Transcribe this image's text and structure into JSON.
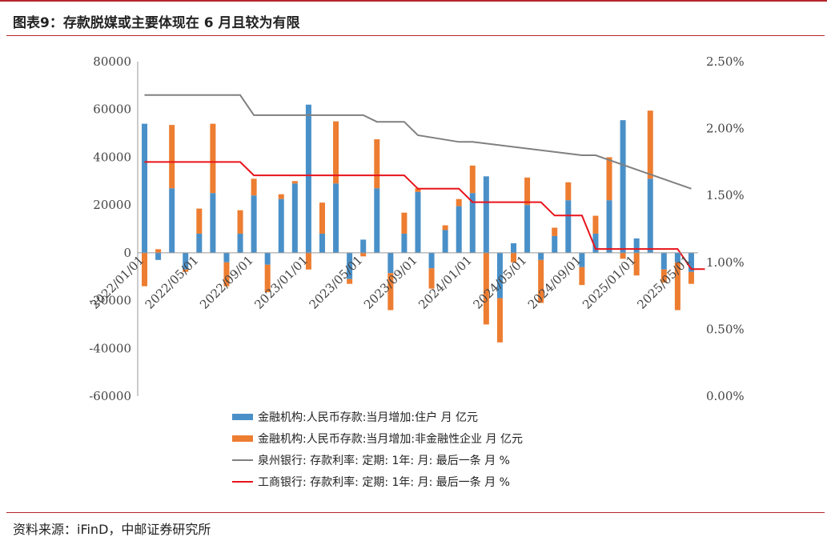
{
  "title": "图表9：存款脱媒或主要体现在 6 月且较为有限",
  "source": "资料来源：iFinD，中邮证券研究所",
  "colors": {
    "households": "#4a90c8",
    "corporates": "#ed7d31",
    "quanzhou": "#808080",
    "icbc": "#e8131a",
    "rule": "#b3262b"
  },
  "chart_data": {
    "type": "bar",
    "title": "",
    "x_tick_labels": [
      "2022/01/01",
      "2022/05/01",
      "2022/09/01",
      "2023/01/01",
      "2023/05/01",
      "2023/09/01",
      "2024/01/01",
      "2024/05/01",
      "2024/09/01",
      "2025/01/01",
      "2025/05/01"
    ],
    "x_tick_index": [
      0,
      4,
      8,
      12,
      16,
      20,
      24,
      28,
      32,
      36,
      40
    ],
    "left_axis": {
      "ylim": [
        -60000,
        80000
      ],
      "ticks": [
        -60000,
        -40000,
        -20000,
        0,
        20000,
        40000,
        60000,
        80000
      ],
      "tick_labels": [
        "-60000",
        "-40000",
        "-20000",
        "0",
        "20000",
        "40000",
        "60000",
        "80000"
      ]
    },
    "right_axis": {
      "ylim": [
        0.0,
        2.5
      ],
      "ticks": [
        0.0,
        0.5,
        1.0,
        1.5,
        2.0,
        2.5
      ],
      "tick_labels": [
        "0.00%",
        "0.50%",
        "1.00%",
        "1.50%",
        "2.00%",
        "2.50%"
      ]
    },
    "series": [
      {
        "name": "金融机构:人民币存款:当月增加:住户 月 亿元",
        "type": "bar",
        "axis": "left",
        "values": [
          54000,
          -3000,
          27000,
          -7000,
          8000,
          25000,
          -4000,
          8000,
          24000,
          -5000,
          22500,
          29000,
          62000,
          8000,
          29000,
          -11000,
          5500,
          27000,
          -8500,
          8000,
          25500,
          -6500,
          9500,
          19500,
          25000,
          32000,
          -19000,
          4000,
          20000,
          -3000,
          7000,
          22000,
          -6000,
          8000,
          22000,
          55500,
          6000,
          31000,
          -7000,
          -4000,
          -8000
        ]
      },
      {
        "name": "金融机构:人民币存款:当月增加:非金融性企业 月 亿元",
        "type": "bar",
        "axis": "left",
        "values": [
          -14000,
          1500,
          26500,
          -1000,
          10500,
          29000,
          -10000,
          9800,
          7000,
          -11500,
          2000,
          1000,
          -7000,
          13000,
          26000,
          -2000,
          -1500,
          20500,
          -15500,
          8800,
          1500,
          -8500,
          2000,
          3000,
          11500,
          -30000,
          -18500,
          -4000,
          11500,
          -18000,
          3500,
          7500,
          -7500,
          7500,
          18000,
          -2500,
          -9500,
          28500,
          -5500,
          -20000,
          -5000
        ]
      },
      {
        "name": "泉州银行: 存款利率: 定期: 1年: 月: 最后一条  月  %",
        "type": "line",
        "axis": "right",
        "x": [
          0,
          7,
          8,
          16,
          17,
          19,
          20,
          23,
          24,
          32,
          33,
          40
        ],
        "values": [
          2.25,
          2.25,
          2.1,
          2.1,
          2.05,
          2.05,
          1.95,
          1.9,
          1.9,
          1.8,
          1.8,
          1.55
        ]
      },
      {
        "name": "工商银行: 存款利率: 定期: 1年: 月: 最后一条  月  %",
        "type": "line",
        "axis": "right",
        "x": [
          0,
          7,
          8,
          19,
          20,
          23,
          24,
          29,
          30,
          32,
          33,
          39,
          40,
          41
        ],
        "values": [
          1.75,
          1.75,
          1.65,
          1.65,
          1.55,
          1.55,
          1.45,
          1.45,
          1.35,
          1.35,
          1.1,
          1.1,
          0.95,
          0.95
        ]
      }
    ],
    "legend_position": "bottom",
    "grid": false
  }
}
